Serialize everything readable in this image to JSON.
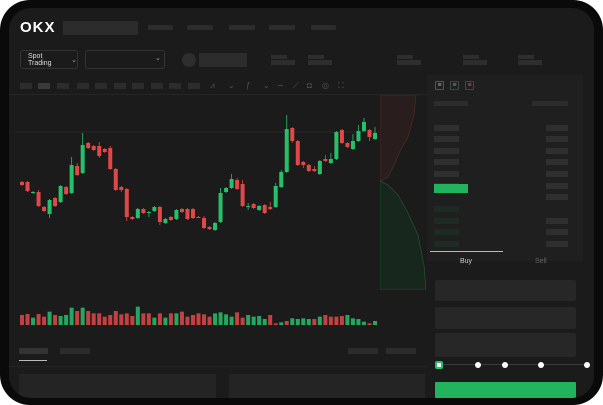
{
  "header": {
    "logo": "OKX",
    "nav_count": 5
  },
  "toolbar": {
    "market_button": "Spot Trading",
    "pair_dropdown": ""
  },
  "orderbook": {
    "view_icons": [
      "orderbook-both-icon",
      "orderbook-buy-icon",
      "orderbook-sell-icon"
    ]
  },
  "trade": {
    "tabs": [
      {
        "label": "Buy",
        "active": true
      },
      {
        "label": "Sell",
        "active": false
      }
    ],
    "slider_percent": 0,
    "slider_steps": [
      0,
      25,
      50,
      75,
      100
    ]
  },
  "colors": {
    "up": "#26c06a",
    "down": "#e04848",
    "background": "#1b1b1b",
    "buy_button": "#22b35e"
  },
  "chart_data": {
    "type": "candlestick",
    "ohlc": [
      [
        68,
        69,
        64,
        65
      ],
      [
        68,
        69,
        58,
        59
      ],
      [
        57,
        59,
        56,
        58
      ],
      [
        58,
        60,
        43,
        44
      ],
      [
        43,
        44,
        38,
        39
      ],
      [
        36,
        51,
        32,
        50
      ],
      [
        52,
        53,
        43,
        44
      ],
      [
        48,
        65,
        47,
        64
      ],
      [
        63,
        64,
        55,
        56
      ],
      [
        57,
        93,
        56,
        85
      ],
      [
        84,
        87,
        74,
        75
      ],
      [
        77,
        117,
        76,
        105
      ],
      [
        107,
        108,
        101,
        102
      ],
      [
        104,
        105,
        99,
        100
      ],
      [
        104,
        108,
        92,
        94
      ],
      [
        101,
        102,
        97,
        98
      ],
      [
        102,
        104,
        80,
        81
      ],
      [
        81,
        82,
        59,
        60
      ],
      [
        63,
        64,
        58,
        60
      ],
      [
        61,
        62,
        29,
        33
      ],
      [
        33,
        34,
        30,
        31
      ],
      [
        32,
        42,
        31,
        41
      ],
      [
        41,
        42,
        36,
        37
      ],
      [
        37,
        39,
        33,
        38
      ],
      [
        39,
        44,
        38,
        43
      ],
      [
        43,
        44,
        25,
        28
      ],
      [
        27,
        32,
        26,
        31
      ],
      [
        33,
        34,
        29,
        30
      ],
      [
        31,
        41,
        30,
        40
      ],
      [
        41,
        42,
        37,
        38
      ],
      [
        41,
        42,
        30,
        31
      ],
      [
        41,
        42,
        31,
        32
      ],
      [
        33,
        34,
        32,
        32
      ],
      [
        32,
        34,
        21,
        22
      ],
      [
        23,
        24,
        20,
        21
      ],
      [
        20,
        28,
        19,
        27
      ],
      [
        28,
        62,
        27,
        57
      ],
      [
        58,
        63,
        57,
        62
      ],
      [
        62,
        76,
        61,
        71
      ],
      [
        70,
        72,
        60,
        61
      ],
      [
        66,
        70,
        43,
        44
      ],
      [
        43,
        47,
        40,
        44
      ],
      [
        46,
        47,
        41,
        42
      ],
      [
        40,
        45,
        39,
        44
      ],
      [
        45,
        46,
        36,
        37
      ],
      [
        43,
        48,
        40,
        41
      ],
      [
        43,
        67,
        42,
        64
      ],
      [
        63,
        80,
        62,
        78
      ],
      [
        78,
        135,
        77,
        121
      ],
      [
        122,
        123,
        107,
        109
      ],
      [
        109,
        110,
        84,
        85
      ],
      [
        88,
        89,
        82,
        85
      ],
      [
        85,
        86,
        78,
        79
      ],
      [
        81,
        84,
        78,
        79
      ],
      [
        76,
        90,
        75,
        89
      ],
      [
        91,
        95,
        88,
        89
      ],
      [
        87,
        97,
        86,
        91
      ],
      [
        91,
        119,
        90,
        118
      ],
      [
        120,
        121,
        106,
        107
      ],
      [
        107,
        108,
        102,
        103
      ],
      [
        101,
        116,
        100,
        109
      ],
      [
        109,
        125,
        108,
        119
      ],
      [
        119,
        132,
        118,
        128
      ],
      [
        120,
        121,
        109,
        113
      ],
      [
        111,
        123,
        110,
        117
      ]
    ],
    "volume": [
      30,
      33,
      22,
      33,
      25,
      40,
      30,
      27,
      30,
      52,
      42,
      52,
      42,
      35,
      35,
      25,
      30,
      42,
      32,
      35,
      27,
      55,
      35,
      35,
      22,
      35,
      22,
      35,
      35,
      40,
      25,
      30,
      35,
      32,
      25,
      35,
      38,
      32,
      25,
      38,
      22,
      30,
      25,
      27,
      18,
      30,
      5,
      8,
      12,
      20,
      18,
      20,
      18,
      18,
      25,
      30,
      25,
      25,
      27,
      30,
      20,
      18,
      10,
      5,
      12
    ],
    "volume_up": [
      0,
      0,
      1,
      0,
      0,
      1,
      0,
      1,
      1,
      1,
      0,
      1,
      0,
      0,
      0,
      0,
      0,
      0,
      0,
      0,
      0,
      1,
      0,
      0,
      1,
      0,
      1,
      0,
      1,
      0,
      0,
      0,
      0,
      0,
      0,
      1,
      1,
      1,
      1,
      0,
      0,
      1,
      1,
      1,
      1,
      0,
      0,
      1,
      0,
      1,
      1,
      1,
      1,
      0,
      1,
      0,
      0,
      0,
      0,
      1,
      1,
      1,
      1,
      0,
      1
    ],
    "grid": false
  }
}
